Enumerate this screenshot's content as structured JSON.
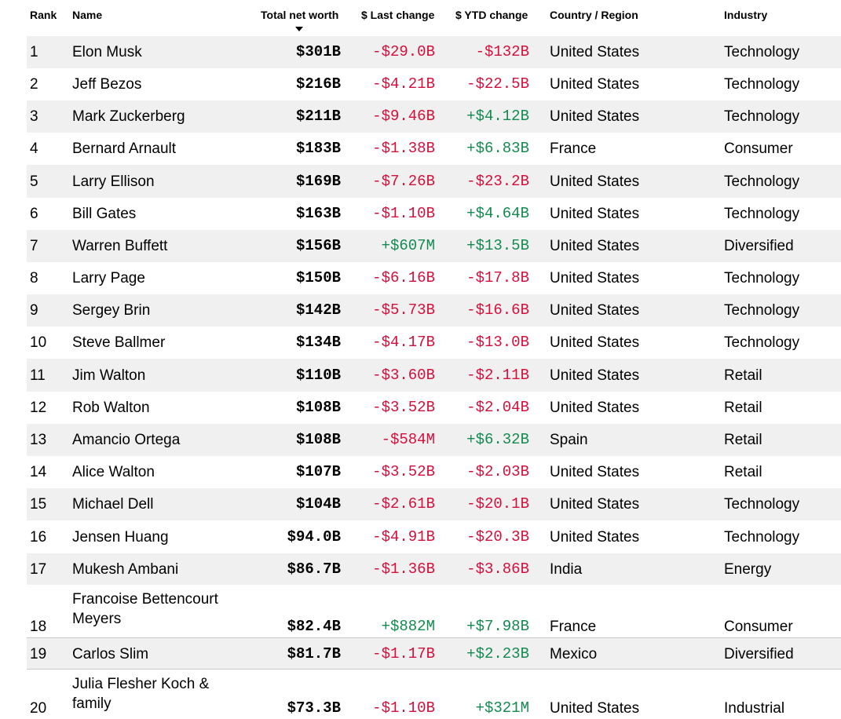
{
  "columns": {
    "rank": "Rank",
    "name": "Name",
    "net_worth": "Total net worth",
    "last_change": "$ Last change",
    "ytd_change": "$ YTD change",
    "country": "Country / Region",
    "industry": "Industry"
  },
  "rows": [
    {
      "rank": "1",
      "name": "Elon Musk",
      "net_worth": "$301B",
      "last_change": "-$29.0B",
      "ytd_change": "-$132B",
      "country": "United States",
      "industry": "Technology"
    },
    {
      "rank": "2",
      "name": "Jeff Bezos",
      "net_worth": "$216B",
      "last_change": "-$4.21B",
      "ytd_change": "-$22.5B",
      "country": "United States",
      "industry": "Technology"
    },
    {
      "rank": "3",
      "name": "Mark Zuckerberg",
      "net_worth": "$211B",
      "last_change": "-$9.46B",
      "ytd_change": "+$4.12B",
      "country": "United States",
      "industry": "Technology"
    },
    {
      "rank": "4",
      "name": "Bernard Arnault",
      "net_worth": "$183B",
      "last_change": "-$1.38B",
      "ytd_change": "+$6.83B",
      "country": "France",
      "industry": "Consumer"
    },
    {
      "rank": "5",
      "name": "Larry Ellison",
      "net_worth": "$169B",
      "last_change": "-$7.26B",
      "ytd_change": "-$23.2B",
      "country": "United States",
      "industry": "Technology"
    },
    {
      "rank": "6",
      "name": "Bill Gates",
      "net_worth": "$163B",
      "last_change": "-$1.10B",
      "ytd_change": "+$4.64B",
      "country": "United States",
      "industry": "Technology"
    },
    {
      "rank": "7",
      "name": "Warren Buffett",
      "net_worth": "$156B",
      "last_change": "+$607M",
      "ytd_change": "+$13.5B",
      "country": "United States",
      "industry": "Diversified"
    },
    {
      "rank": "8",
      "name": "Larry Page",
      "net_worth": "$150B",
      "last_change": "-$6.16B",
      "ytd_change": "-$17.8B",
      "country": "United States",
      "industry": "Technology"
    },
    {
      "rank": "9",
      "name": "Sergey Brin",
      "net_worth": "$142B",
      "last_change": "-$5.73B",
      "ytd_change": "-$16.6B",
      "country": "United States",
      "industry": "Technology"
    },
    {
      "rank": "10",
      "name": "Steve Ballmer",
      "net_worth": "$134B",
      "last_change": "-$4.17B",
      "ytd_change": "-$13.0B",
      "country": "United States",
      "industry": "Technology"
    },
    {
      "rank": "11",
      "name": "Jim Walton",
      "net_worth": "$110B",
      "last_change": "-$3.60B",
      "ytd_change": "-$2.11B",
      "country": "United States",
      "industry": "Retail"
    },
    {
      "rank": "12",
      "name": "Rob Walton",
      "net_worth": "$108B",
      "last_change": "-$3.52B",
      "ytd_change": "-$2.04B",
      "country": "United States",
      "industry": "Retail"
    },
    {
      "rank": "13",
      "name": "Amancio Ortega",
      "net_worth": "$108B",
      "last_change": "-$584M",
      "ytd_change": "+$6.32B",
      "country": "Spain",
      "industry": "Retail"
    },
    {
      "rank": "14",
      "name": "Alice Walton",
      "net_worth": "$107B",
      "last_change": "-$3.52B",
      "ytd_change": "-$2.03B",
      "country": "United States",
      "industry": "Retail"
    },
    {
      "rank": "15",
      "name": "Michael Dell",
      "net_worth": "$104B",
      "last_change": "-$2.61B",
      "ytd_change": "-$20.1B",
      "country": "United States",
      "industry": "Technology"
    },
    {
      "rank": "16",
      "name": "Jensen Huang",
      "net_worth": "$94.0B",
      "last_change": "-$4.91B",
      "ytd_change": "-$20.3B",
      "country": "United States",
      "industry": "Technology"
    },
    {
      "rank": "17",
      "name": "Mukesh Ambani",
      "net_worth": "$86.7B",
      "last_change": "-$1.36B",
      "ytd_change": "-$3.86B",
      "country": "India",
      "industry": "Energy"
    },
    {
      "rank": "18",
      "name": "Francoise Bettencourt Meyers",
      "net_worth": "$82.4B",
      "last_change": "+$882M",
      "ytd_change": "+$7.98B",
      "country": "France",
      "industry": "Consumer"
    },
    {
      "rank": "19",
      "name": "Carlos Slim",
      "net_worth": "$81.7B",
      "last_change": "-$1.17B",
      "ytd_change": "+$2.23B",
      "country": "Mexico",
      "industry": "Diversified"
    },
    {
      "rank": "20",
      "name": "Julia Flesher Koch & family",
      "net_worth": "$73.3B",
      "last_change": "-$1.10B",
      "ytd_change": "+$321M",
      "country": "United States",
      "industry": "Industrial"
    }
  ],
  "colors": {
    "negative": "#d40f3c",
    "positive": "#138a4f",
    "stripe": "#f0f0f0"
  },
  "icons": {
    "sort": "sort-descending-caret"
  }
}
